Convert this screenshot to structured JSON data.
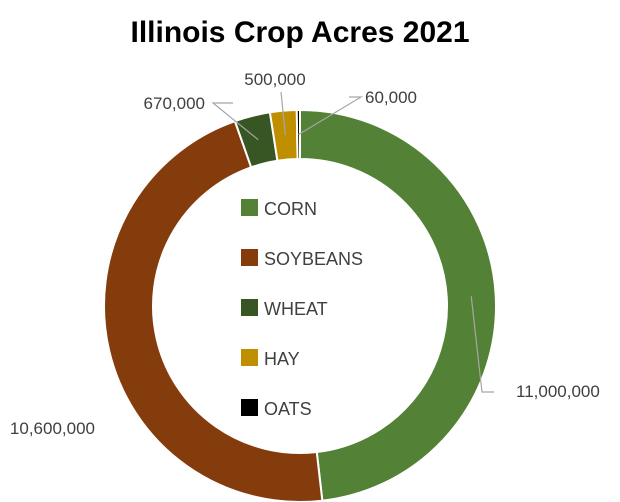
{
  "chart_data": {
    "type": "pie",
    "variant": "donut",
    "title": "Illinois Crop Acres 2021",
    "legend_position": "center",
    "series": [
      {
        "name": "CORN",
        "value": 11000000,
        "label": "11,000,000",
        "color": "#538135"
      },
      {
        "name": "SOYBEANS",
        "value": 10600000,
        "label": "10,600,000",
        "color": "#843c0c"
      },
      {
        "name": "WHEAT",
        "value": 670000,
        "label": "670,000",
        "color": "#375623"
      },
      {
        "name": "HAY",
        "value": 500000,
        "label": "500,000",
        "color": "#bf8f00"
      },
      {
        "name": "OATS",
        "value": 60000,
        "label": "60,000",
        "color": "#000000"
      }
    ]
  }
}
